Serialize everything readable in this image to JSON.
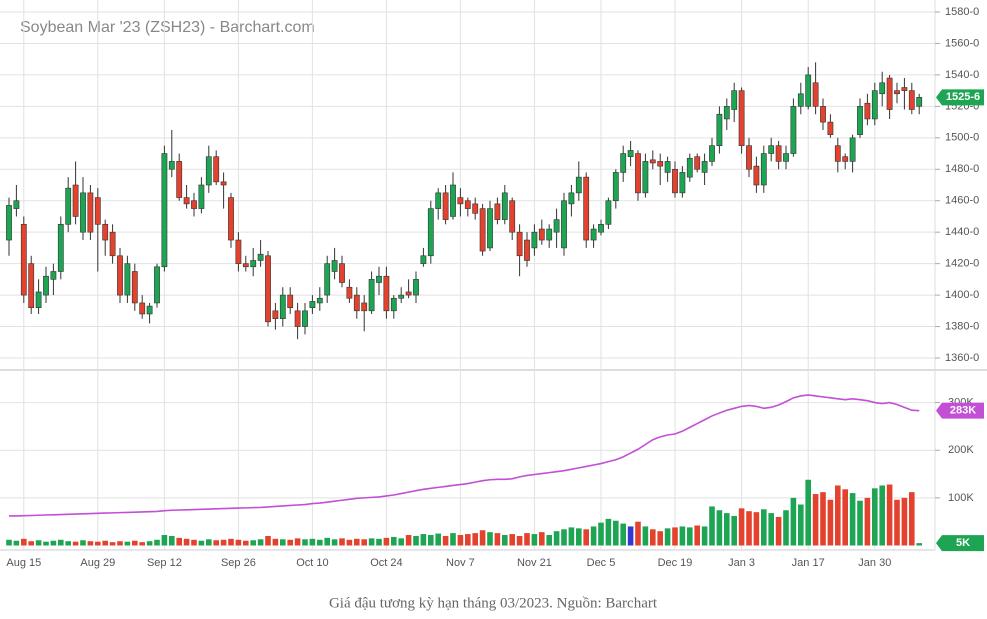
{
  "chart_data": [
    {
      "type": "candlestick",
      "title": "Soybean Mar '23 (ZSH23) - Barchart.com",
      "up_color": "#1ea553",
      "down_color": "#e3432e",
      "categories": [
        null,
        null,
        "Aug 15",
        null,
        null,
        null,
        null,
        null,
        null,
        null,
        null,
        null,
        "Aug 29",
        null,
        null,
        null,
        null,
        null,
        null,
        null,
        null,
        "Sep 12",
        null,
        null,
        null,
        null,
        null,
        null,
        null,
        null,
        null,
        "Sep 26",
        null,
        null,
        null,
        null,
        null,
        null,
        null,
        null,
        null,
        "Oct 10",
        null,
        null,
        null,
        null,
        null,
        null,
        null,
        null,
        null,
        "Oct 24",
        null,
        null,
        null,
        null,
        null,
        null,
        null,
        null,
        null,
        "Nov 7",
        null,
        null,
        null,
        null,
        null,
        null,
        null,
        null,
        null,
        "Nov 21",
        null,
        null,
        null,
        null,
        null,
        null,
        null,
        null,
        "Dec 5",
        null,
        null,
        null,
        null,
        null,
        null,
        null,
        null,
        null,
        "Dec 19",
        null,
        null,
        null,
        null,
        null,
        null,
        null,
        null,
        "Jan 3",
        null,
        null,
        null,
        null,
        null,
        null,
        null,
        null,
        "Jan 17",
        null,
        null,
        null,
        null,
        null,
        null,
        null,
        null,
        "Jan 30",
        null,
        null,
        null,
        null,
        null,
        null
      ],
      "open": [
        1435,
        1455,
        1445,
        1420,
        1392,
        1400,
        1410,
        1415,
        1445,
        1470,
        1440,
        1465,
        1462,
        1445,
        1440,
        1425,
        1400,
        1415,
        1395,
        1388,
        1395,
        1418,
        1480,
        1485,
        1462,
        1460,
        1455,
        1470,
        1488,
        1472,
        1462,
        1435,
        1420,
        1418,
        1422,
        1425,
        1390,
        1385,
        1400,
        1390,
        1380,
        1392,
        1395,
        1400,
        1415,
        1420,
        1405,
        1400,
        1395,
        1390,
        1408,
        1412,
        1390,
        1398,
        1402,
        1400,
        1420,
        1425,
        1455,
        1465,
        1450,
        1462,
        1460,
        1458,
        1455,
        1430,
        1458,
        1448,
        1460,
        1440,
        1435,
        1430,
        1442,
        1435,
        1440,
        1430,
        1458,
        1465,
        1475,
        1435,
        1440,
        1445,
        1460,
        1478,
        1488,
        1490,
        1465,
        1486,
        1485,
        1478,
        1480,
        1465,
        1475,
        1488,
        1478,
        1485,
        1495,
        1512,
        1518,
        1530,
        1495,
        1482,
        1470,
        1490,
        1495,
        1485,
        1490,
        1520,
        1520,
        1535,
        1520,
        1510,
        1495,
        1488,
        1485,
        1502,
        1522,
        1512,
        1528,
        1538,
        1530,
        1532,
        1530,
        1520
      ],
      "high": [
        1462,
        1470,
        1450,
        1425,
        1410,
        1418,
        1420,
        1450,
        1475,
        1485,
        1475,
        1470,
        1468,
        1448,
        1445,
        1430,
        1425,
        1420,
        1400,
        1395,
        1420,
        1495,
        1505,
        1490,
        1470,
        1465,
        1475,
        1495,
        1492,
        1478,
        1465,
        1440,
        1425,
        1430,
        1435,
        1428,
        1395,
        1405,
        1405,
        1395,
        1395,
        1400,
        1405,
        1425,
        1430,
        1425,
        1410,
        1405,
        1400,
        1415,
        1418,
        1418,
        1400,
        1405,
        1410,
        1415,
        1430,
        1460,
        1468,
        1470,
        1478,
        1468,
        1462,
        1462,
        1458,
        1460,
        1462,
        1470,
        1462,
        1445,
        1440,
        1445,
        1448,
        1445,
        1455,
        1465,
        1470,
        1485,
        1478,
        1445,
        1448,
        1462,
        1480,
        1495,
        1498,
        1492,
        1490,
        1492,
        1490,
        1488,
        1485,
        1482,
        1490,
        1490,
        1490,
        1500,
        1520,
        1525,
        1535,
        1532,
        1500,
        1488,
        1495,
        1500,
        1498,
        1495,
        1525,
        1535,
        1545,
        1548,
        1525,
        1515,
        1500,
        1490,
        1502,
        1525,
        1528,
        1535,
        1542,
        1540,
        1535,
        1538,
        1535,
        1528
      ],
      "low": [
        1425,
        1450,
        1395,
        1388,
        1388,
        1395,
        1400,
        1410,
        1440,
        1445,
        1435,
        1435,
        1415,
        1425,
        1420,
        1395,
        1395,
        1390,
        1385,
        1382,
        1392,
        1415,
        1475,
        1460,
        1455,
        1450,
        1452,
        1465,
        1470,
        1455,
        1430,
        1415,
        1415,
        1412,
        1418,
        1380,
        1378,
        1380,
        1388,
        1372,
        1375,
        1388,
        1390,
        1395,
        1410,
        1405,
        1395,
        1385,
        1377,
        1388,
        1400,
        1385,
        1385,
        1395,
        1398,
        1395,
        1418,
        1420,
        1448,
        1445,
        1448,
        1450,
        1450,
        1448,
        1425,
        1428,
        1445,
        1445,
        1435,
        1412,
        1418,
        1425,
        1432,
        1430,
        1430,
        1425,
        1450,
        1460,
        1430,
        1430,
        1438,
        1442,
        1455,
        1472,
        1482,
        1460,
        1462,
        1480,
        1470,
        1472,
        1462,
        1462,
        1472,
        1478,
        1470,
        1482,
        1490,
        1505,
        1510,
        1490,
        1475,
        1465,
        1465,
        1485,
        1480,
        1480,
        1488,
        1515,
        1518,
        1515,
        1505,
        1500,
        1478,
        1480,
        1478,
        1500,
        1508,
        1508,
        1520,
        1512,
        1522,
        1518,
        1515,
        1515
      ],
      "close": [
        1457,
        1460,
        1400,
        1392,
        1402,
        1412,
        1415,
        1445,
        1468,
        1450,
        1465,
        1440,
        1445,
        1435,
        1425,
        1400,
        1420,
        1395,
        1388,
        1393,
        1418,
        1490,
        1485,
        1462,
        1458,
        1455,
        1470,
        1488,
        1472,
        1470,
        1435,
        1420,
        1418,
        1422,
        1426,
        1383,
        1385,
        1400,
        1392,
        1380,
        1390,
        1396,
        1398,
        1420,
        1422,
        1408,
        1398,
        1390,
        1390,
        1410,
        1412,
        1390,
        1398,
        1400,
        1400,
        1410,
        1425,
        1455,
        1465,
        1448,
        1470,
        1458,
        1455,
        1452,
        1428,
        1455,
        1448,
        1465,
        1440,
        1425,
        1422,
        1440,
        1435,
        1442,
        1448,
        1460,
        1465,
        1475,
        1435,
        1442,
        1445,
        1460,
        1478,
        1490,
        1492,
        1465,
        1485,
        1484,
        1482,
        1485,
        1465,
        1478,
        1487,
        1480,
        1485,
        1495,
        1515,
        1520,
        1530,
        1495,
        1480,
        1470,
        1490,
        1495,
        1485,
        1490,
        1520,
        1528,
        1540,
        1520,
        1510,
        1502,
        1485,
        1485,
        1500,
        1520,
        1512,
        1530,
        1535,
        1518,
        1528,
        1530,
        1518,
        1525.75
      ],
      "close_label": "1525-6",
      "ylim": [
        1360,
        1580
      ],
      "yticks": [
        {
          "value": 1360,
          "label": "1360-0"
        },
        {
          "value": 1380,
          "label": "1380-0"
        },
        {
          "value": 1400,
          "label": "1400-0"
        },
        {
          "value": 1420,
          "label": "1420-0"
        },
        {
          "value": 1440,
          "label": "1440-0"
        },
        {
          "value": 1460,
          "label": "1460-0"
        },
        {
          "value": 1480,
          "label": "1480-0"
        },
        {
          "value": 1500,
          "label": "1500-0"
        },
        {
          "value": 1520,
          "label": "1520-0"
        },
        {
          "value": 1540,
          "label": "1540-0"
        },
        {
          "value": 1560,
          "label": "1560-0"
        },
        {
          "value": 1580,
          "label": "1580-0"
        }
      ],
      "grid": true
    },
    {
      "type": "bar",
      "series": [
        {
          "type": "bar",
          "highlight": {
            "index": 84,
            "color": "#3438d0"
          },
          "values": [
            12000,
            10000,
            14000,
            9000,
            11000,
            8000,
            10000,
            12000,
            9000,
            8000,
            11000,
            9000,
            8000,
            10000,
            7000,
            9000,
            8000,
            10000,
            7000,
            9000,
            12000,
            22000,
            20000,
            16000,
            14000,
            12000,
            10000,
            13000,
            11000,
            12000,
            14000,
            12000,
            10000,
            11000,
            13000,
            20000,
            14000,
            13000,
            12000,
            15000,
            13000,
            14000,
            12000,
            16000,
            13000,
            15000,
            12000,
            14000,
            13000,
            15000,
            14000,
            16000,
            18000,
            15000,
            22000,
            20000,
            24000,
            22000,
            25000,
            20000,
            26000,
            22000,
            24000,
            26000,
            32000,
            28000,
            26000,
            22000,
            24000,
            20000,
            26000,
            24000,
            28000,
            22000,
            30000,
            34000,
            38000,
            36000,
            34000,
            40000,
            48000,
            56000,
            52000,
            46000,
            40000,
            50000,
            40000,
            34000,
            30000,
            36000,
            38000,
            40000,
            38000,
            42000,
            40000,
            82000,
            74000,
            68000,
            62000,
            78000,
            72000,
            70000,
            76000,
            68000,
            60000,
            74000,
            100000,
            86000,
            138000,
            108000,
            112000,
            96000,
            126000,
            118000,
            110000,
            94000,
            100000,
            120000,
            126000,
            128000,
            96000,
            100000,
            112000,
            5000
          ],
          "last_label": "5K"
        },
        {
          "type": "line",
          "color": "#c24fd6",
          "values": [
            62000,
            62000,
            62500,
            63000,
            63500,
            64000,
            64500,
            65000,
            65500,
            66000,
            66500,
            67000,
            67500,
            68000,
            68500,
            69000,
            69500,
            70000,
            70500,
            71000,
            71500,
            73000,
            74000,
            74500,
            75000,
            75500,
            76000,
            76500,
            77000,
            77500,
            78000,
            78500,
            79000,
            79500,
            80000,
            81000,
            82000,
            83000,
            84000,
            85000,
            86000,
            88000,
            89000,
            91000,
            93000,
            95000,
            97000,
            99000,
            100000,
            101000,
            102000,
            104000,
            106000,
            109000,
            112000,
            115000,
            118000,
            120000,
            122000,
            124000,
            126000,
            128000,
            130000,
            133000,
            136000,
            138000,
            139000,
            139000,
            140000,
            144000,
            147000,
            149000,
            151000,
            153000,
            155000,
            157000,
            160000,
            163000,
            166000,
            169000,
            172000,
            176000,
            180000,
            186000,
            194000,
            202000,
            212000,
            222000,
            228000,
            232000,
            234000,
            240000,
            248000,
            256000,
            264000,
            272000,
            278000,
            284000,
            288000,
            292000,
            294000,
            292000,
            288000,
            290000,
            295000,
            302000,
            310000,
            314000,
            316000,
            314000,
            312000,
            310000,
            308000,
            306000,
            308000,
            306000,
            304000,
            300000,
            298000,
            300000,
            296000,
            290000,
            284000,
            283000
          ],
          "last_label": "283K"
        }
      ],
      "ylim": [
        0,
        360000
      ],
      "yticks": [
        {
          "value": 100000,
          "label": "100K"
        },
        {
          "value": 200000,
          "label": "200K"
        },
        {
          "value": 300000,
          "label": "300K"
        }
      ],
      "grid": true
    }
  ],
  "caption": "Giá đậu tương kỳ hạn tháng 03/2023. Nguồn: Barchart"
}
